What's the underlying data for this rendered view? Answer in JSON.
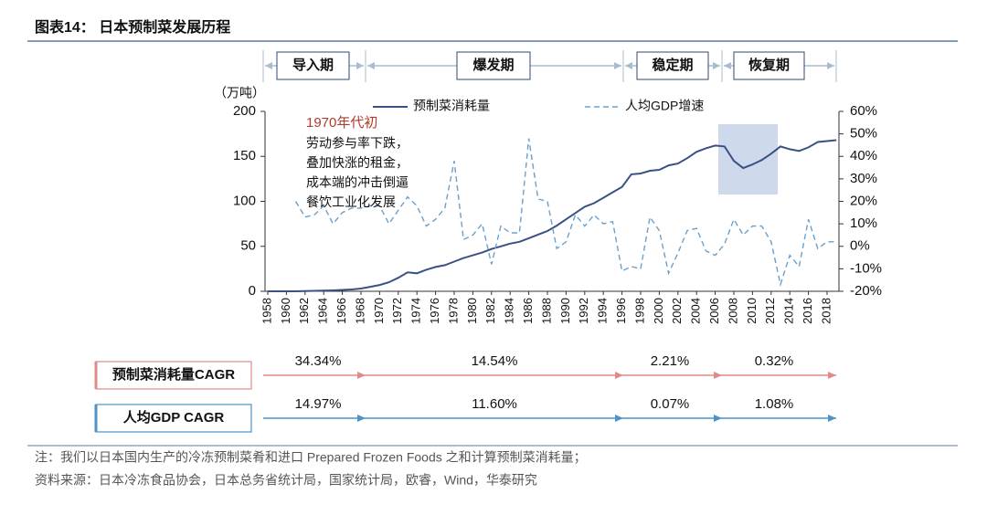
{
  "chart_data": {
    "type": "line",
    "title": "图表14：  日本预制菜发展历程",
    "ylabel": "（万吨）",
    "categories": [
      "1958",
      null,
      "1960",
      null,
      "1962",
      null,
      "1964",
      null,
      "1966",
      null,
      "1968",
      null,
      "1970",
      null,
      "1972",
      null,
      "1974",
      null,
      "1976",
      null,
      "1978",
      null,
      "1980",
      null,
      "1982",
      null,
      "1984",
      null,
      "1986",
      null,
      "1988",
      null,
      "1990",
      null,
      "1992",
      null,
      "1994",
      null,
      "1996",
      null,
      "1998",
      null,
      "2000",
      null,
      "2002",
      null,
      "2004",
      null,
      "2006",
      null,
      "2008",
      null,
      "2010",
      null,
      "2012",
      null,
      "2014",
      null,
      "2016",
      null,
      "2018",
      null
    ],
    "series": [
      {
        "name": "预制菜消耗量",
        "color": "#3a5283",
        "dash": false,
        "values": [
          0,
          0,
          0,
          0,
          0.2,
          0.5,
          0.7,
          1,
          1.5,
          2,
          3,
          5,
          7,
          10,
          15,
          21,
          20,
          24,
          27,
          29,
          33,
          37,
          40,
          43,
          47,
          50,
          53,
          55,
          59,
          63,
          67,
          73,
          80,
          87,
          94,
          98,
          104,
          110,
          116,
          130,
          131,
          134,
          135,
          140,
          142,
          148,
          155,
          159,
          162,
          161,
          145,
          137,
          141,
          146,
          153,
          161,
          158,
          156,
          160,
          166,
          167,
          168
        ]
      },
      {
        "name": "人均GDP增速",
        "color": "#6aa0cc",
        "dash": true,
        "axis": "y2",
        "values": [
          null,
          null,
          null,
          20,
          13,
          14,
          18,
          10,
          15,
          17,
          17,
          18,
          18,
          10,
          16,
          22,
          18,
          9,
          12,
          17,
          38,
          3,
          5,
          10,
          -8,
          9,
          6,
          6,
          48,
          21,
          20,
          -1,
          2,
          14,
          9,
          14,
          10,
          11,
          -11,
          -9,
          -10,
          13,
          7,
          -12,
          -3,
          7,
          8,
          -2,
          -4,
          1,
          12,
          5,
          9,
          9,
          2,
          -17,
          -4,
          -9,
          12,
          -1,
          2,
          2
        ]
      }
    ],
    "ylim": [
      0,
      200
    ],
    "yticks": [
      0,
      50,
      100,
      150,
      200
    ],
    "y2lim": [
      -20,
      60
    ],
    "y2ticks": [
      {
        "value": -20,
        "label": "-20%"
      },
      {
        "value": -10,
        "label": "-10%"
      },
      {
        "value": 0,
        "label": "0%"
      },
      {
        "value": 10,
        "label": "10%"
      },
      {
        "value": 20,
        "label": "20%"
      },
      {
        "value": 30,
        "label": "30%"
      },
      {
        "value": 40,
        "label": "40%"
      },
      {
        "value": 50,
        "label": "50%"
      },
      {
        "value": 60,
        "label": "60%"
      }
    ],
    "annotation": {
      "title": "1970年代初",
      "lines": [
        "劳动参与率下跌，",
        "叠加快涨的租金，",
        "成本端的冲击倒逼",
        "餐饮工业化发展"
      ]
    },
    "phases": [
      "导入期",
      "爆发期",
      "稳定期",
      "恢复期"
    ],
    "cagr": [
      {
        "label": "预制菜消耗量CAGR",
        "values": [
          "34.34%",
          "14.54%",
          "2.21%",
          "0.32%"
        ]
      },
      {
        "label": "人均GDP CAGR",
        "values": [
          "14.97%",
          "11.60%",
          "0.07%",
          "1.08%"
        ]
      }
    ],
    "notes": [
      "注：我们以日本国内生产的冷冻预制菜肴和进口 Prepared Frozen Foods 之和计算预制菜消耗量；",
      "资料来源：日本冷冻食品协会，日本总务省统计局，国家统计局，欧睿，Wind，华泰研究"
    ]
  }
}
